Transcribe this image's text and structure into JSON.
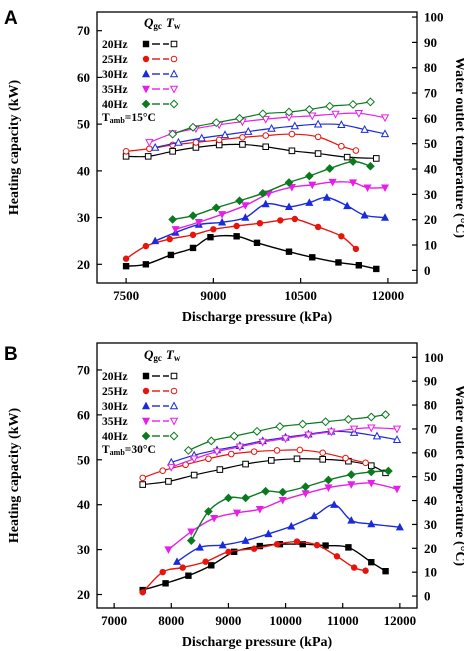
{
  "chart_data": [
    {
      "panel_label": "A",
      "type": "line",
      "xlabel": "Discharge pressure (kPa)",
      "ylabel_left": "Heating capacity (kW)",
      "ylabel_right": "Water outlet temperature (°C)",
      "xlim": [
        7000,
        12500
      ],
      "xticks": [
        7500,
        9000,
        10500,
        12000
      ],
      "ylim_left": [
        16,
        74
      ],
      "yticks_left": [
        20,
        30,
        40,
        50,
        60,
        70
      ],
      "ylim_right": [
        -5,
        102
      ],
      "yticks_right": [
        0,
        10,
        20,
        30,
        40,
        50,
        60,
        70,
        80,
        90,
        100
      ],
      "legend": {
        "header_q": "Q",
        "header_q_sub": "gc",
        "header_t": "T",
        "header_t_sub": "w",
        "condition_main": "T",
        "condition_sub": "amb",
        "condition_value": "=15°C",
        "placement": "top-left"
      },
      "series": [
        {
          "name": "20Hz",
          "color": "#000000",
          "marker": "square",
          "q_x": [
            7500,
            7840,
            8270,
            8650,
            8950,
            9400,
            9750,
            10300,
            10700,
            11150,
            11500,
            11800
          ],
          "q_y": [
            19.6,
            20.0,
            22.0,
            23.5,
            25.8,
            26.0,
            24.6,
            22.7,
            21.5,
            20.4,
            19.8,
            19.0
          ],
          "t_x": [
            7500,
            7880,
            8300,
            8700,
            9100,
            9500,
            9900,
            10350,
            10800,
            11300,
            11800
          ],
          "t_y": [
            45.0,
            45.0,
            47.0,
            48.5,
            49.5,
            49.7,
            48.8,
            47.2,
            46.1,
            44.7,
            44.2
          ]
        },
        {
          "name": "25Hz",
          "color": "#e8140c",
          "marker": "circle",
          "q_x": [
            7500,
            7840,
            8250,
            8650,
            9000,
            9400,
            9800,
            10150,
            10400,
            10800,
            11200,
            11450
          ],
          "q_y": [
            21.2,
            23.9,
            25.4,
            26.3,
            27.5,
            28.2,
            28.8,
            29.4,
            29.7,
            28.0,
            26.0,
            23.3
          ],
          "t_x": [
            7500,
            7900,
            8300,
            8700,
            9100,
            9500,
            9900,
            10350,
            10800,
            11200,
            11450
          ],
          "t_y": [
            47.0,
            48.0,
            49.5,
            50.5,
            51.5,
            52.5,
            53.2,
            53.8,
            52.7,
            49.0,
            47.3
          ]
        },
        {
          "name": "30Hz",
          "color": "#1a2bdc",
          "marker": "triangle",
          "q_x": [
            8000,
            8350,
            8750,
            9150,
            9550,
            9900,
            10300,
            10650,
            10950,
            11300,
            11600,
            11950
          ],
          "q_y": [
            25.0,
            26.8,
            28.5,
            29.0,
            30.0,
            32.9,
            32.3,
            33.2,
            34.3,
            32.5,
            30.5,
            30.0
          ],
          "t_x": [
            8000,
            8400,
            8800,
            9200,
            9600,
            10000,
            10400,
            10800,
            11200,
            11600,
            11950
          ],
          "t_y": [
            48.5,
            50.5,
            52.2,
            53.5,
            54.8,
            56.0,
            57.0,
            57.7,
            57.5,
            55.6,
            53.9
          ]
        },
        {
          "name": "35Hz",
          "color": "#e81ee8",
          "marker": "triangle-down",
          "q_x": [
            8350,
            8750,
            9150,
            9550,
            9950,
            10350,
            10700,
            11050,
            11400,
            11650,
            11950
          ],
          "q_y": [
            27.5,
            29.0,
            30.7,
            32.6,
            35.1,
            36.5,
            37.0,
            37.6,
            37.5,
            36.4,
            36.4
          ],
          "t_x": [
            7900,
            8300,
            8700,
            9100,
            9500,
            9900,
            10300,
            10700,
            11100,
            11500,
            11950
          ],
          "t_y": [
            50.5,
            54.0,
            56.0,
            57.5,
            58.7,
            59.7,
            60.5,
            61.0,
            61.7,
            62.0,
            60.3
          ]
        },
        {
          "name": "40Hz",
          "color": "#0a7a1e",
          "marker": "diamond",
          "q_x": [
            8300,
            8650,
            9050,
            9450,
            9850,
            10300,
            10650,
            11000,
            11400,
            11700
          ],
          "q_y": [
            29.6,
            30.4,
            32.1,
            33.6,
            35.2,
            37.5,
            38.9,
            40.5,
            42.0,
            41.0
          ],
          "t_x": [
            8300,
            8650,
            9050,
            9450,
            9850,
            10300,
            10650,
            11000,
            11400,
            11700
          ],
          "t_y": [
            53.8,
            56.5,
            58.3,
            60.0,
            61.8,
            62.5,
            63.5,
            64.8,
            65.5,
            66.5
          ]
        }
      ]
    },
    {
      "panel_label": "B",
      "type": "line",
      "xlabel": "Discharge pressure (kPa)",
      "ylabel_left": "Heating capacity (kW)",
      "ylabel_right": "Water outlet temperature (°C)",
      "xlim": [
        6700,
        12300
      ],
      "xticks": [
        7000,
        8000,
        9000,
        10000,
        11000,
        12000
      ],
      "ylim_left": [
        17,
        76
      ],
      "yticks_left": [
        20,
        30,
        40,
        50,
        60,
        70
      ],
      "ylim_right": [
        -5,
        106
      ],
      "yticks_right": [
        0,
        10,
        20,
        30,
        40,
        50,
        60,
        70,
        80,
        90,
        100
      ],
      "legend": {
        "header_q": "Q",
        "header_q_sub": "gc",
        "header_t": "T",
        "header_t_sub": "w",
        "condition_main": "T",
        "condition_sub": "amb",
        "condition_value": "=30°C",
        "placement": "top-left"
      },
      "series": [
        {
          "name": "20Hz",
          "color": "#000000",
          "marker": "square",
          "q_x": [
            7500,
            7900,
            8300,
            8700,
            9100,
            9550,
            9900,
            10300,
            10700,
            11100,
            11500,
            11750
          ],
          "q_y": [
            21.0,
            22.5,
            24.2,
            26.5,
            29.5,
            30.8,
            31.2,
            31.2,
            30.9,
            30.5,
            27.2,
            25.2
          ],
          "t_x": [
            7500,
            7950,
            8400,
            8850,
            9300,
            9750,
            10200,
            10650,
            11100,
            11500,
            11750
          ],
          "t_y": [
            46.7,
            48.0,
            50.7,
            53.0,
            55.3,
            56.8,
            57.5,
            57.3,
            56.5,
            54.6,
            51.6
          ]
        },
        {
          "name": "25Hz",
          "color": "#e8140c",
          "marker": "circle",
          "q_x": [
            7500,
            7850,
            8200,
            8600,
            9000,
            9450,
            9850,
            10200,
            10550,
            10900,
            11200,
            11400
          ],
          "q_y": [
            20.5,
            25.0,
            26.0,
            27.3,
            29.5,
            30.2,
            31.2,
            31.8,
            31.0,
            28.5,
            26.0,
            25.3
          ],
          "t_x": [
            7500,
            7850,
            8250,
            8650,
            9050,
            9450,
            9850,
            10250,
            10650,
            11050,
            11400
          ],
          "t_y": [
            49.5,
            52.5,
            55.0,
            57.5,
            59.5,
            60.5,
            61.0,
            61.2,
            60.0,
            57.8,
            55.8
          ]
        },
        {
          "name": "30Hz",
          "color": "#1a2bdc",
          "marker": "triangle",
          "q_x": [
            8100,
            8500,
            8900,
            9300,
            9700,
            10100,
            10500,
            10850,
            11150,
            11500,
            12000
          ],
          "q_y": [
            27.3,
            30.5,
            31.0,
            32.0,
            33.5,
            35.2,
            37.5,
            40.0,
            36.5,
            35.7,
            35.0
          ],
          "t_x": [
            8000,
            8400,
            8800,
            9200,
            9600,
            10000,
            10400,
            10800,
            11200,
            11600,
            11950
          ],
          "t_y": [
            56.0,
            59.0,
            61.2,
            63.0,
            65.0,
            66.5,
            67.8,
            69.0,
            68.5,
            67.0,
            65.5
          ]
        },
        {
          "name": "35Hz",
          "color": "#e81ee8",
          "marker": "triangle-down",
          "q_x": [
            7950,
            8350,
            8750,
            9150,
            9550,
            9950,
            10350,
            10750,
            11150,
            11500,
            11950
          ],
          "q_y": [
            30.0,
            34.0,
            37.0,
            38.2,
            39.0,
            41.0,
            42.5,
            43.8,
            44.5,
            44.8,
            43.5
          ],
          "t_x": [
            8000,
            8400,
            8800,
            9200,
            9600,
            10000,
            10400,
            10800,
            11200,
            11500,
            11950
          ],
          "t_y": [
            54.0,
            57.5,
            60.5,
            62.5,
            64.5,
            66.0,
            67.5,
            68.8,
            70.0,
            70.5,
            70.0
          ]
        },
        {
          "name": "40Hz",
          "color": "#0a7a1e",
          "marker": "diamond",
          "q_x": [
            8350,
            8650,
            9000,
            9300,
            9650,
            9950,
            10350,
            10750,
            11150,
            11500,
            11800
          ],
          "q_y": [
            32.0,
            38.5,
            41.5,
            41.5,
            43.0,
            42.8,
            44.0,
            45.5,
            46.7,
            47.3,
            47.5
          ],
          "t_x": [
            8300,
            8700,
            9100,
            9500,
            9900,
            10300,
            10700,
            11100,
            11500,
            11750
          ],
          "t_y": [
            61.0,
            65.0,
            67.0,
            69.0,
            71.0,
            72.0,
            73.0,
            74.0,
            75.0,
            76.0
          ]
        }
      ]
    }
  ]
}
